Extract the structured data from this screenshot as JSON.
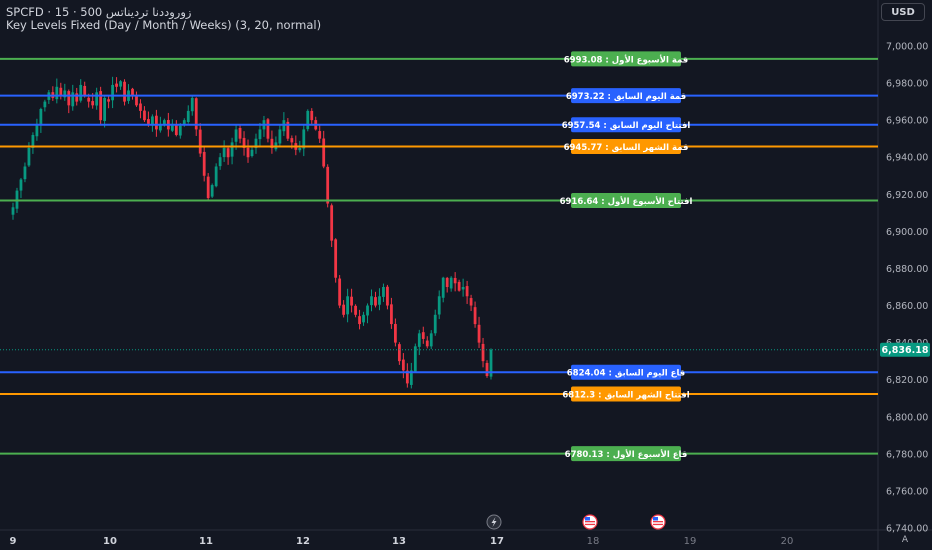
{
  "header": {
    "symbol_line": "SPCFD · 15 · 500 زوروددنا ترديناتس",
    "indicator_line": "Key Levels Fixed (Day / Month / Weeks) (3, 20, normal)",
    "currency_button": "USD",
    "axis_mode_button": "A"
  },
  "chart_data": {
    "type": "candlestick",
    "title": "",
    "y_axis": {
      "range": [
        6740,
        7006
      ],
      "ticks": [
        7000,
        6980,
        6960,
        6940,
        6920,
        6900,
        6880,
        6860,
        6840,
        6820,
        6800,
        6780,
        6760,
        6740
      ],
      "tick_labels": [
        "7,000.00",
        "6,980.00",
        "6,960.00",
        "6,940.00",
        "6,920.00",
        "6,900.00",
        "6,880.00",
        "6,860.00",
        "6,840.00",
        "6,820.00",
        "6,800.00",
        "6,780.00",
        "6,760.00",
        "6,740.00"
      ],
      "position": "right"
    },
    "x_axis": {
      "tick_labels": [
        "9",
        "10",
        "11",
        "12",
        "13",
        "17",
        "18",
        "19",
        "20"
      ],
      "bold_labels": [
        "9",
        "10",
        "11",
        "12",
        "13",
        "17"
      ]
    },
    "last_price": 6836.18,
    "last_price_label": "6,836.18",
    "key_levels": [
      {
        "label": "قمة الأسبوع الأول : 6993.08",
        "value": 6993.08,
        "color": "#4caf50"
      },
      {
        "label": "قمة اليوم السابق : 6973.22",
        "value": 6973.22,
        "color": "#2962ff"
      },
      {
        "label": "افتتاح اليوم السابق : 6957.54",
        "value": 6957.54,
        "color": "#2962ff"
      },
      {
        "label": "قمة الشهر السابق : 6945.77",
        "value": 6945.77,
        "color": "#ff9800"
      },
      {
        "label": "افتتاح الأسبوع الأول : 6916.64",
        "value": 6916.64,
        "color": "#4caf50"
      },
      {
        "label": "قاع اليوم السابق : 6824.04",
        "value": 6824.04,
        "color": "#2962ff"
      },
      {
        "label": "افتتاح الشهر السابق : 6812.3",
        "value": 6812.3,
        "color": "#ff9800"
      },
      {
        "label": "قاع الأسبوع الأول : 6780.13",
        "value": 6780.13,
        "color": "#4caf50"
      }
    ],
    "price_path": [
      6913,
      6922,
      6928,
      6935,
      6945,
      6952,
      6958,
      6966,
      6970,
      6975,
      6972,
      6978,
      6973,
      6976,
      6968,
      6975,
      6970,
      6979,
      6973,
      6970,
      6968,
      6975,
      6960,
      6972,
      6970,
      6979,
      6978,
      6981,
      6970,
      6976,
      6973,
      6968,
      6965,
      6960,
      6958,
      6962,
      6955,
      6958,
      6960,
      6955,
      6958,
      6952,
      6957,
      6960,
      6965,
      6972,
      6955,
      6942,
      6930,
      6918,
      6925,
      6935,
      6940,
      6945,
      6940,
      6948,
      6955,
      6950,
      6945,
      6940,
      6944,
      6950,
      6955,
      6960,
      6950,
      6945,
      6948,
      6955,
      6960,
      6950,
      6948,
      6944,
      6945,
      6955,
      6965,
      6960,
      6955,
      6950,
      6935,
      6915,
      6895,
      6875,
      6860,
      6855,
      6865,
      6860,
      6855,
      6850,
      6855,
      6860,
      6865,
      6860,
      6865,
      6870,
      6860,
      6850,
      6840,
      6830,
      6825,
      6818,
      6825,
      6838,
      6845,
      6842,
      6838,
      6845,
      6855,
      6865,
      6875,
      6870,
      6875,
      6872,
      6868,
      6870,
      6865,
      6860,
      6850,
      6840,
      6830,
      6822,
      6836.18
    ],
    "events": [
      {
        "day": "17",
        "icon": "lightning-icon"
      },
      {
        "day": "18",
        "icon": "us-flag-icon"
      },
      {
        "day": "19",
        "icon": "us-flag-icon"
      }
    ],
    "colors": {
      "background": "#131722",
      "up": "#089981",
      "down": "#f23645",
      "grid": "#1e222d",
      "axis_text": "#b2b5be",
      "last_price": "#089981"
    }
  }
}
